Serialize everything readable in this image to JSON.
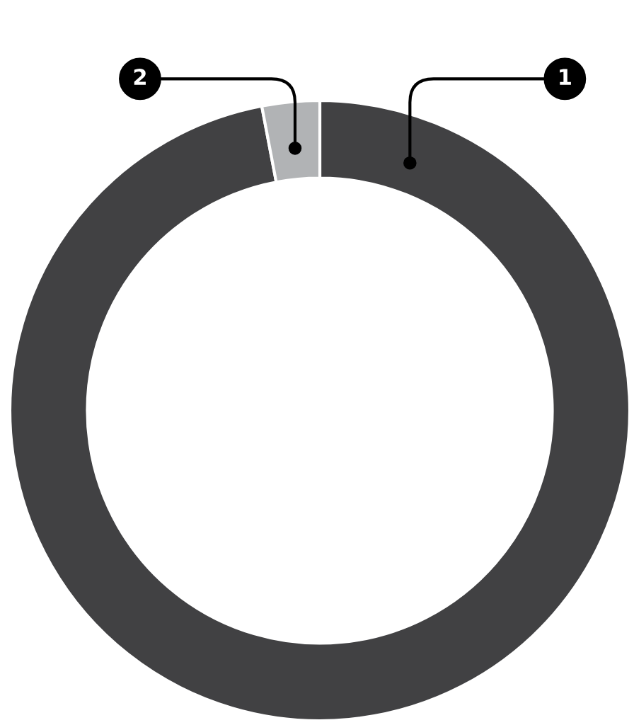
{
  "chart_data": {
    "type": "donut",
    "categories": [
      "1",
      "2"
    ],
    "values": [
      97,
      3
    ],
    "colors": [
      "#414143",
      "#b1b3b5"
    ]
  }
}
